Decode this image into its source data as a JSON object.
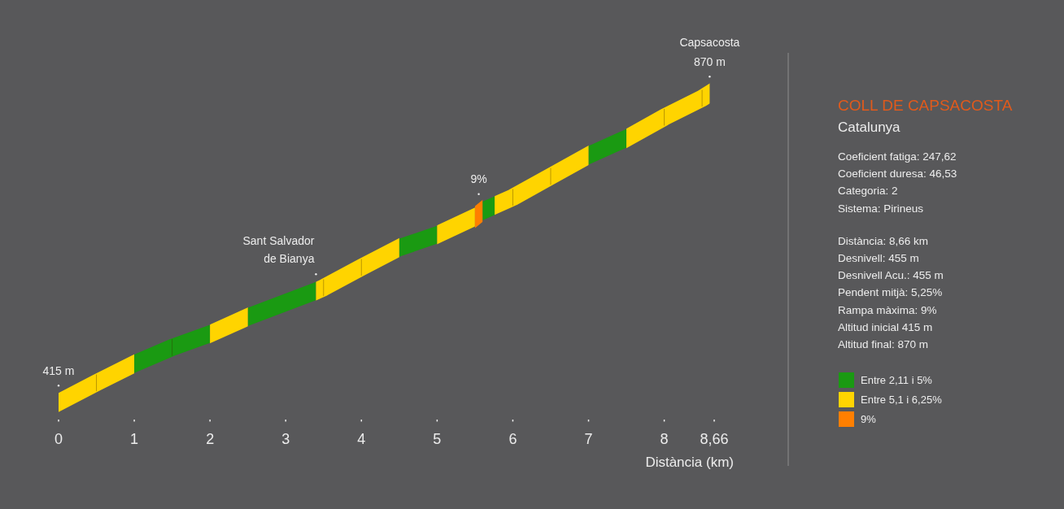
{
  "chart_data": {
    "type": "line",
    "title": "COLL DE CAPSACOSTA",
    "subtitle": "Catalunya",
    "xlabel": "Distància (km)",
    "xlim": [
      0,
      8.66
    ],
    "xticks": [
      0,
      1,
      2,
      3,
      4,
      5,
      6,
      7,
      8,
      {
        "value": 8.66,
        "label": "8,66"
      }
    ],
    "tick_labels": "x",
    "legend": "right",
    "annotations": [
      "Capsacosta",
      "Coeficient fatiga: 247,62",
      "Coeficient duresa: 46,53",
      "Categoria: 2",
      "Sistema: Pirineus",
      "Distància: 8,66 km",
      "Desnivell: 455 m",
      "Desnivell Acu.: 455 m",
      "Pendent mitjà: 5,25%",
      "Rampa màxima: 9%",
      "Altitud inicial 415 m",
      "Altitud final: 870 m",
      {
        "text": "Sant Salvador de Bianya",
        "x": 3.4,
        "y": 579
      },
      {
        "text": "9%",
        "x": 5.55,
        "y": 697
      }
    ],
    "series": [
      {
        "name": "Entre 2,11 i 5%",
        "color": "#1a9a12",
        "x": [
          1,
          1.5,
          2
        ],
        "values": [
          472,
          496,
          516
        ]
      },
      {
        "color": "#1a9a12",
        "x": [
          2.5,
          3.4
        ],
        "values": [
          541,
          579
        ]
      },
      {
        "color": "#1a9a12",
        "x": [
          4.5,
          5
        ],
        "values": [
          643,
          662
        ]
      },
      {
        "color": "#1a9a12",
        "x": [
          5.6,
          5.76
        ],
        "values": [
          697,
          705
        ]
      },
      {
        "color": "#1a9a12",
        "x": [
          7,
          7.5
        ],
        "values": [
          779,
          804
        ]
      },
      {
        "name": "Entre 5,1 i 6,25%",
        "color": "#ffd400",
        "x": [
          0,
          0.5,
          1
        ],
        "values": [
          415,
          444,
          472
        ],
        "value_labels": [
          "415 m",
          null,
          null
        ]
      },
      {
        "color": "#ffd400",
        "x": [
          2,
          2.5
        ],
        "values": [
          516,
          541
        ]
      },
      {
        "color": "#ffd400",
        "x": [
          3.4,
          3.5,
          4,
          4.5
        ],
        "values": [
          579,
          584,
          614,
          643
        ]
      },
      {
        "color": "#ffd400",
        "x": [
          5,
          5.5
        ],
        "values": [
          662,
          688
        ]
      },
      {
        "color": "#ffd400",
        "x": [
          5.76,
          6,
          6.5,
          7
        ],
        "values": [
          705,
          717,
          748,
          779
        ]
      },
      {
        "color": "#ffd400",
        "x": [
          7.5,
          8,
          8.5,
          8.6
        ],
        "values": [
          804,
          835,
          863,
          870
        ],
        "value_labels": [
          null,
          null,
          null,
          "870 m"
        ]
      },
      {
        "name": "9%",
        "color": "#ff7f00",
        "x": [
          5.5,
          5.6
        ],
        "values": [
          688,
          697
        ]
      }
    ]
  }
}
